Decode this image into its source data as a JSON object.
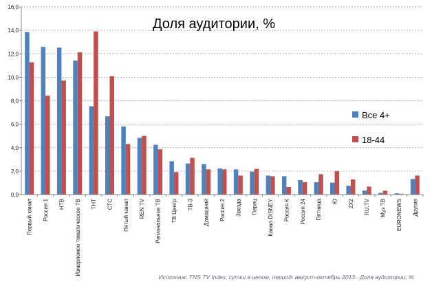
{
  "chart_data": {
    "type": "bar",
    "title": "Доля аудитории, %",
    "xlabel": "",
    "ylabel": "",
    "ylim": [
      0,
      16
    ],
    "yticks": [
      "0,0",
      "2,0",
      "4,0",
      "6,0",
      "8,0",
      "10,0",
      "12,0",
      "14,0",
      "16,0"
    ],
    "grid": true,
    "legend_position": "right",
    "categories": [
      "Первый канал",
      "Россия 1",
      "НТВ",
      "Измеряемое тематическое ТВ",
      "ТНТ",
      "СТС",
      "Пятый канал",
      "REN TV",
      "Региональное ТВ",
      "ТВ Центр",
      "ТВ-3",
      "Домашний",
      "Россия 2",
      "Звезда",
      "Перец",
      "Канал DISNEY",
      "Россия К",
      "Россия 24",
      "Пятница",
      "Ю",
      "2Х2",
      "RU.TV",
      "Муз ТВ",
      "EURONEWS",
      "Другие"
    ],
    "series": [
      {
        "name": "Все 4+",
        "color": "#4f81bd",
        "values": [
          13.85,
          12.59,
          12.53,
          11.43,
          7.53,
          6.67,
          5.81,
          4.84,
          4.25,
          2.84,
          2.65,
          2.6,
          2.23,
          2.15,
          1.96,
          1.62,
          1.56,
          1.23,
          1.06,
          1.02,
          0.76,
          0.35,
          0.15,
          0.11,
          1.33
        ]
      },
      {
        "name": "18-44",
        "color": "#c0504d",
        "values": [
          11.28,
          8.43,
          9.72,
          12.12,
          13.91,
          10.09,
          4.31,
          5.0,
          3.86,
          1.92,
          3.13,
          2.15,
          2.15,
          1.62,
          2.19,
          1.56,
          0.65,
          1.06,
          1.74,
          2.0,
          1.29,
          0.68,
          0.33,
          0.07,
          1.62
        ]
      }
    ]
  },
  "source": "Источник: TNS TV Index, сутки в целом, период: август-октябрь 2013 . Доля аудитории, %."
}
